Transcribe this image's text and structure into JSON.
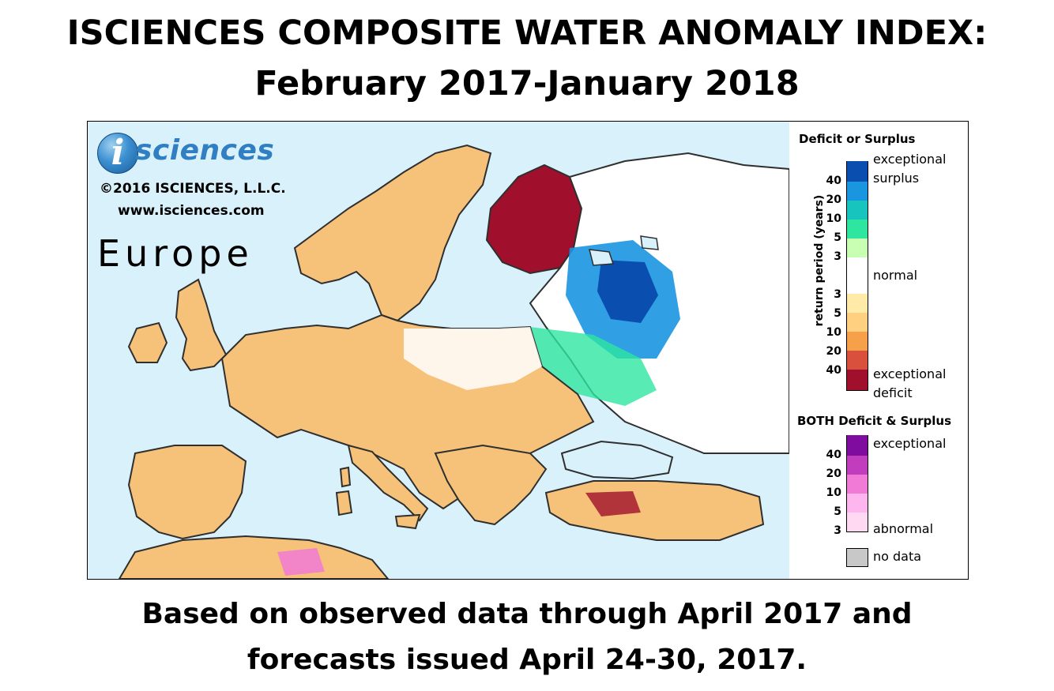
{
  "title_line1": "ISCIENCES COMPOSITE WATER ANOMALY INDEX:",
  "title_line2": "February 2017-January 2018",
  "footer_line1": "Based on observed data through April 2017 and",
  "footer_line2": "forecasts issued April 24-30, 2017.",
  "map": {
    "logo_letter": "i",
    "logo_text": "sciences",
    "copyright": "©2016 ISCIENCES, L.L.C.",
    "website": "www.isciences.com",
    "region_label": "Europe",
    "colors": {
      "water": "#d9f1fb",
      "land": "#f6c27a",
      "border": "#2f2f2f"
    }
  },
  "legend": {
    "deficit_surplus": {
      "heading": "Deficit or Surplus",
      "axis_label": "return period (years)",
      "top_label_1": "exceptional",
      "top_label_2": "surplus",
      "middle_label": "normal",
      "bottom_label_1": "exceptional",
      "bottom_label_2": "deficit",
      "surplus_ticks": [
        "40",
        "20",
        "10",
        "5",
        "3"
      ],
      "deficit_ticks": [
        "3",
        "5",
        "10",
        "20",
        "40"
      ],
      "colors": [
        "#0a4fb0",
        "#1a95e0",
        "#17c4be",
        "#2ee6a0",
        "#c9ffb3",
        "#ffffff",
        "#ffeaa7",
        "#ffd080",
        "#f7a04a",
        "#d9503c",
        "#a0102c"
      ]
    },
    "both": {
      "heading": "BOTH Deficit & Surplus",
      "top_label": "exceptional",
      "bottom_label": "abnormal",
      "ticks": [
        "40",
        "20",
        "10",
        "5",
        "3"
      ],
      "colors": [
        "#7f0c9e",
        "#c23cbe",
        "#f07ad6",
        "#ffb6ee",
        "#ffd9f1"
      ]
    },
    "no_data": {
      "label": "no data",
      "color": "#c8c8c8"
    }
  }
}
